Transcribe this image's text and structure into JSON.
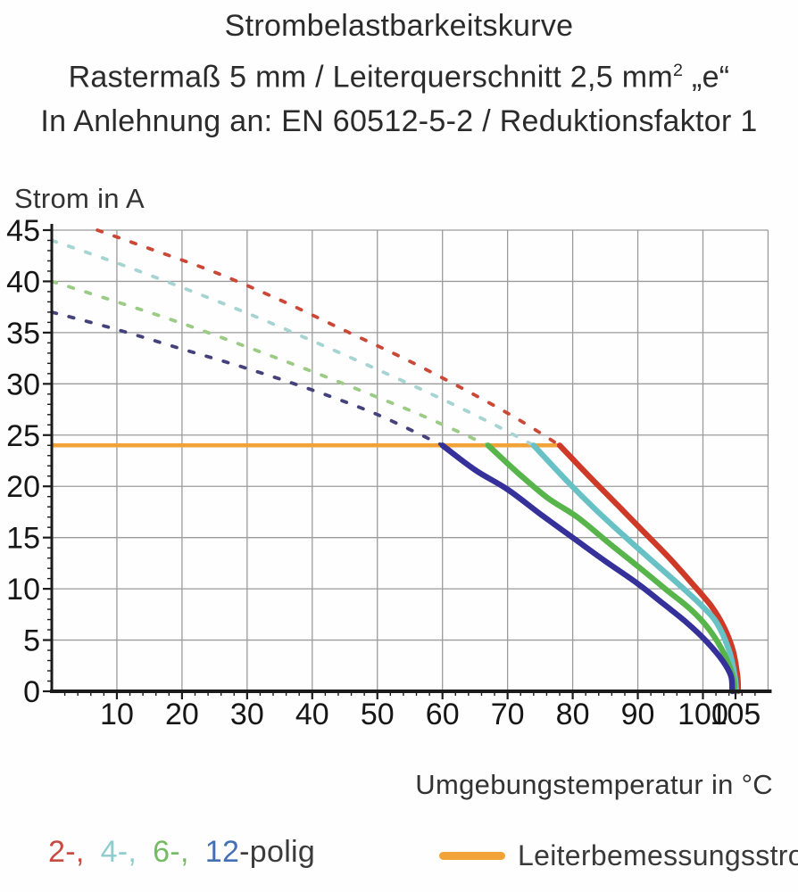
{
  "title": {
    "line1": "Strombelastbarkeitskurve",
    "line2_pre": "Rastermaß 5 mm / Leiterquerschnitt 2,5 mm",
    "line2_sup": "2",
    "line2_post": " „e“",
    "line3": "In Anlehnung an: EN 60512-5-2 / Reduktionsfaktor 1"
  },
  "chart_data": {
    "type": "line",
    "ylabel": "Strom in A",
    "xlabel": "Umgebungstemperatur in °C",
    "xlim": [
      0,
      110
    ],
    "ylim": [
      0,
      45
    ],
    "grid": {
      "x_step": 10,
      "y_step": 5,
      "color": "#9b9b9b",
      "on": true
    },
    "x_ticks": [
      {
        "v": 10,
        "label": "10"
      },
      {
        "v": 20,
        "label": "20"
      },
      {
        "v": 30,
        "label": "30"
      },
      {
        "v": 40,
        "label": "40"
      },
      {
        "v": 50,
        "label": "50"
      },
      {
        "v": 60,
        "label": "60"
      },
      {
        "v": 70,
        "label": "70"
      },
      {
        "v": 80,
        "label": "80"
      },
      {
        "v": 90,
        "label": "90"
      },
      {
        "v": 100,
        "label": "100"
      },
      {
        "v": 105,
        "label": "105"
      }
    ],
    "y_ticks": [
      {
        "v": 0,
        "label": "0"
      },
      {
        "v": 5,
        "label": "5"
      },
      {
        "v": 10,
        "label": "10"
      },
      {
        "v": 15,
        "label": "15"
      },
      {
        "v": 20,
        "label": "20"
      },
      {
        "v": 25,
        "label": "25"
      },
      {
        "v": 30,
        "label": "30"
      },
      {
        "v": 35,
        "label": "35"
      },
      {
        "v": 40,
        "label": "40"
      },
      {
        "v": 45,
        "label": "45"
      }
    ],
    "rated_line": {
      "label": "Leiterbemessungsstrom",
      "value": 24,
      "x_range": [
        0,
        78
      ],
      "color": "#f2a338"
    },
    "series": [
      {
        "name": "2-polig",
        "color": "#cf3a28",
        "dash_color": "#cc4836",
        "dashed": [
          [
            7,
            45
          ],
          [
            15,
            43.2
          ],
          [
            25,
            40.9
          ],
          [
            35,
            38.2
          ],
          [
            45,
            35.2
          ],
          [
            55,
            32.2
          ],
          [
            65,
            28.9
          ],
          [
            72,
            26.4
          ],
          [
            78,
            24
          ]
        ],
        "solid": [
          [
            78,
            24
          ],
          [
            82.5,
            21
          ],
          [
            87,
            18.1
          ],
          [
            91,
            15.5
          ],
          [
            95,
            12.9
          ],
          [
            98.5,
            10.4
          ],
          [
            101.3,
            8.3
          ],
          [
            103.2,
            6.3
          ],
          [
            104.6,
            4.0
          ],
          [
            105.3,
            1.5
          ],
          [
            105.4,
            0
          ]
        ]
      },
      {
        "name": "4-polig",
        "color": "#68c2c5",
        "dash_color": "#a6d4d2",
        "dashed": [
          [
            0,
            44
          ],
          [
            10,
            41.8
          ],
          [
            20,
            39.4
          ],
          [
            30,
            36.9
          ],
          [
            40,
            34.2
          ],
          [
            50,
            31.4
          ],
          [
            60,
            28.5
          ],
          [
            68,
            26
          ],
          [
            74,
            24
          ]
        ],
        "solid": [
          [
            74,
            24
          ],
          [
            79,
            20.6
          ],
          [
            83.4,
            17.8
          ],
          [
            88,
            15.1
          ],
          [
            92.6,
            12.5
          ],
          [
            96.7,
            10.2
          ],
          [
            99.9,
            8.3
          ],
          [
            102.2,
            6.6
          ],
          [
            104,
            4.0
          ],
          [
            104.9,
            1.5
          ],
          [
            105.1,
            0
          ]
        ]
      },
      {
        "name": "6-polig",
        "color": "#58b54b",
        "dash_color": "#9ccb86",
        "dashed": [
          [
            0,
            40
          ],
          [
            10,
            38
          ],
          [
            20,
            35.9
          ],
          [
            30,
            33.6
          ],
          [
            40,
            31.2
          ],
          [
            50,
            28.7
          ],
          [
            58,
            26.6
          ],
          [
            67,
            24
          ]
        ],
        "solid": [
          [
            67,
            24
          ],
          [
            71.6,
            21.3
          ],
          [
            76.1,
            18.9
          ],
          [
            80.7,
            17.0
          ],
          [
            85.3,
            14.6
          ],
          [
            89.8,
            12.3
          ],
          [
            94.4,
            9.9
          ],
          [
            98.1,
            8.0
          ],
          [
            101,
            6.0
          ],
          [
            103.3,
            3.6
          ],
          [
            104.7,
            1.2
          ],
          [
            104.8,
            0
          ]
        ]
      },
      {
        "name": "12-polig",
        "color": "#36309b",
        "dash_color": "#45427b",
        "dashed": [
          [
            0,
            37
          ],
          [
            10,
            35.3
          ],
          [
            20,
            33.4
          ],
          [
            30,
            31.5
          ],
          [
            40,
            29.4
          ],
          [
            50,
            27
          ],
          [
            60,
            24
          ]
        ],
        "solid": [
          [
            60,
            24
          ],
          [
            65,
            21.6
          ],
          [
            70,
            19.7
          ],
          [
            75,
            17.3
          ],
          [
            80,
            15.0
          ],
          [
            85,
            12.7
          ],
          [
            90,
            10.5
          ],
          [
            94,
            8.5
          ],
          [
            97.5,
            6.7
          ],
          [
            100.5,
            4.9
          ],
          [
            103,
            3.0
          ],
          [
            104.3,
            1.5
          ],
          [
            104.5,
            0
          ]
        ]
      }
    ],
    "colors": {
      "axis": "#1b1b1b",
      "tick_text": "#161616",
      "axis_title": "#333333"
    }
  },
  "legend": {
    "poles": {
      "items": [
        {
          "text": "2-,",
          "color": "#c84a42",
          "gap": true
        },
        {
          "text": "4-,",
          "color": "#8fccce",
          "gap": true
        },
        {
          "text": "6-,",
          "color": "#74bc64",
          "gap": true
        },
        {
          "text": "12",
          "color": "#4470b4",
          "gap": false
        },
        {
          "text": "-polig",
          "color": "#3b3b3b",
          "gap": false
        }
      ]
    }
  }
}
